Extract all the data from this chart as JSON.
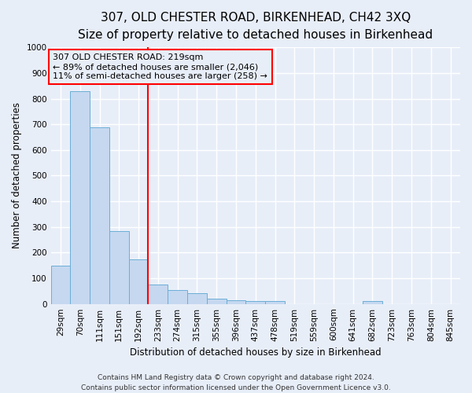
{
  "title": "307, OLD CHESTER ROAD, BIRKENHEAD, CH42 3XQ",
  "subtitle": "Size of property relative to detached houses in Birkenhead",
  "xlabel": "Distribution of detached houses by size in Birkenhead",
  "ylabel": "Number of detached properties",
  "bar_color": "#c5d8f0",
  "bar_edge_color": "#6baed6",
  "categories": [
    "29sqm",
    "70sqm",
    "111sqm",
    "151sqm",
    "192sqm",
    "233sqm",
    "274sqm",
    "315sqm",
    "355sqm",
    "396sqm",
    "437sqm",
    "478sqm",
    "519sqm",
    "559sqm",
    "600sqm",
    "641sqm",
    "682sqm",
    "723sqm",
    "763sqm",
    "804sqm",
    "845sqm"
  ],
  "values": [
    150,
    830,
    687,
    283,
    175,
    77,
    55,
    42,
    20,
    13,
    11,
    11,
    0,
    0,
    0,
    0,
    10,
    0,
    0,
    0,
    0
  ],
  "ylim": [
    0,
    1000
  ],
  "yticks": [
    0,
    100,
    200,
    300,
    400,
    500,
    600,
    700,
    800,
    900,
    1000
  ],
  "property_line_x": 4.5,
  "annotation_text": "307 OLD CHESTER ROAD: 219sqm\n← 89% of detached houses are smaller (2,046)\n11% of semi-detached houses are larger (258) →",
  "footer_line1": "Contains HM Land Registry data © Crown copyright and database right 2024.",
  "footer_line2": "Contains public sector information licensed under the Open Government Licence v3.0.",
  "bg_color": "#e8eef8",
  "plot_bg_color": "#e8eef8",
  "grid_color": "#ffffff",
  "title_fontsize": 11,
  "subtitle_fontsize": 9.5,
  "tick_fontsize": 7.5,
  "ylabel_fontsize": 8.5,
  "xlabel_fontsize": 8.5,
  "footer_fontsize": 6.5,
  "ann_fontsize": 8
}
